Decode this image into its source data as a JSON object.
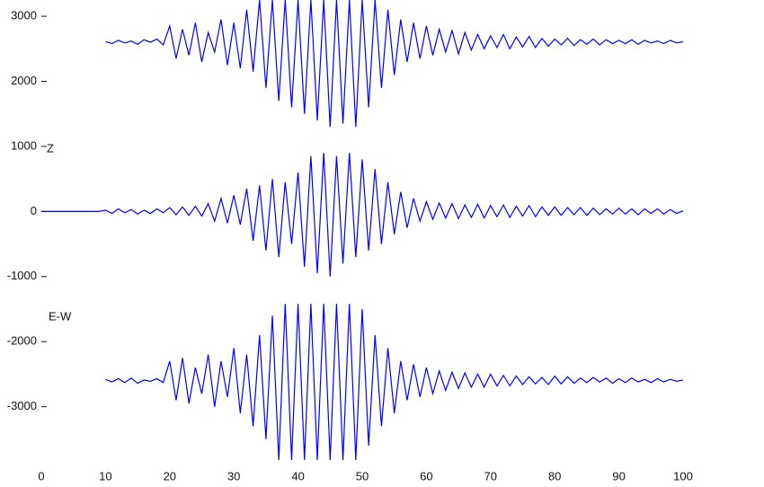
{
  "chart_data": {
    "type": "line",
    "annotations": [
      "Z",
      "E-W"
    ],
    "x": [
      0,
      1,
      2,
      3,
      4,
      5,
      6,
      7,
      8,
      9,
      10,
      11,
      12,
      13,
      14,
      15,
      16,
      17,
      18,
      19,
      20,
      21,
      22,
      23,
      24,
      25,
      26,
      27,
      28,
      29,
      30,
      31,
      32,
      33,
      34,
      35,
      36,
      37,
      38,
      39,
      40,
      41,
      42,
      43,
      44,
      45,
      46,
      47,
      48,
      49,
      50,
      51,
      52,
      53,
      54,
      55,
      56,
      57,
      58,
      59,
      60,
      61,
      62,
      63,
      64,
      65,
      66,
      67,
      68,
      69,
      70,
      71,
      72,
      73,
      74,
      75,
      76,
      77,
      78,
      79,
      80,
      81,
      82,
      83,
      84,
      85,
      86,
      87,
      88,
      89,
      90,
      91,
      92,
      93,
      94,
      95,
      96,
      97,
      98,
      99,
      100
    ],
    "series": [
      {
        "color": "#0000ff",
        "values": [
          null,
          null,
          null,
          null,
          null,
          null,
          null,
          null,
          null,
          null,
          2610,
          2580,
          2630,
          2590,
          2620,
          2570,
          2640,
          2600,
          2650,
          2560,
          2850,
          2350,
          2800,
          2400,
          2900,
          2300,
          2750,
          2450,
          2950,
          2250,
          2900,
          2200,
          3100,
          2150,
          3250,
          1900,
          3250,
          1700,
          3250,
          1600,
          3250,
          1500,
          3250,
          1400,
          3250,
          1300,
          3250,
          1350,
          3250,
          1300,
          3250,
          1600,
          3250,
          1900,
          3100,
          2100,
          2950,
          2300,
          2900,
          2350,
          2850,
          2400,
          2800,
          2450,
          2780,
          2420,
          2750,
          2480,
          2720,
          2500,
          2700,
          2520,
          2720,
          2500,
          2680,
          2530,
          2690,
          2520,
          2660,
          2540,
          2650,
          2560,
          2660,
          2550,
          2640,
          2570,
          2650,
          2560,
          2640,
          2580,
          2630,
          2580,
          2640,
          2570,
          2630,
          2590,
          2620,
          2580,
          2630,
          2590,
          2610
        ]
      },
      {
        "color": "#0000ff",
        "values": [
          0,
          0,
          0,
          0,
          0,
          0,
          0,
          0,
          0,
          0,
          20,
          -30,
          40,
          -20,
          30,
          -40,
          20,
          -30,
          40,
          -20,
          60,
          -50,
          70,
          -60,
          80,
          -70,
          120,
          -150,
          200,
          -180,
          250,
          -200,
          350,
          -450,
          400,
          -600,
          500,
          -700,
          450,
          -500,
          600,
          -850,
          850,
          -950,
          900,
          -1000,
          850,
          -800,
          900,
          -700,
          800,
          -600,
          650,
          -500,
          450,
          -350,
          300,
          -250,
          200,
          -150,
          150,
          -120,
          130,
          -100,
          120,
          -110,
          100,
          -90,
          110,
          -100,
          90,
          -80,
          100,
          -90,
          80,
          -70,
          90,
          -80,
          70,
          -60,
          70,
          -60,
          60,
          -50,
          60,
          -60,
          50,
          -50,
          40,
          -40,
          50,
          -40,
          40,
          -50,
          40,
          -30,
          40,
          -40,
          30,
          -30,
          10
        ]
      },
      {
        "color": "#0000ff",
        "values": [
          null,
          null,
          null,
          null,
          null,
          null,
          null,
          null,
          null,
          null,
          -2580,
          -2620,
          -2570,
          -2630,
          -2560,
          -2640,
          -2590,
          -2610,
          -2570,
          -2630,
          -2300,
          -2900,
          -2250,
          -2950,
          -2400,
          -2800,
          -2200,
          -3000,
          -2300,
          -2850,
          -2100,
          -3100,
          -2200,
          -3300,
          -1900,
          -3500,
          -1600,
          -3820,
          -1420,
          -3820,
          -1420,
          -3820,
          -1420,
          -3820,
          -1420,
          -3820,
          -1420,
          -3820,
          -1420,
          -3820,
          -1500,
          -3600,
          -1900,
          -3300,
          -2100,
          -3100,
          -2300,
          -2900,
          -2350,
          -2850,
          -2400,
          -2800,
          -2450,
          -2750,
          -2470,
          -2720,
          -2480,
          -2700,
          -2500,
          -2700,
          -2500,
          -2680,
          -2520,
          -2680,
          -2530,
          -2660,
          -2540,
          -2650,
          -2550,
          -2660,
          -2530,
          -2650,
          -2540,
          -2640,
          -2560,
          -2630,
          -2550,
          -2620,
          -2560,
          -2640,
          -2570,
          -2630,
          -2560,
          -2620,
          -2580,
          -2630,
          -2570,
          -2620,
          -2580,
          -2610,
          -2590
        ]
      }
    ],
    "xlim": [
      0,
      100
    ],
    "xticks": [
      0,
      10,
      20,
      30,
      40,
      50,
      60,
      70,
      80,
      90,
      100
    ],
    "ylim": [
      -3820,
      3250
    ],
    "yticks": [
      3000,
      2000,
      1000,
      0,
      -1000,
      -2000,
      -3000
    ]
  }
}
